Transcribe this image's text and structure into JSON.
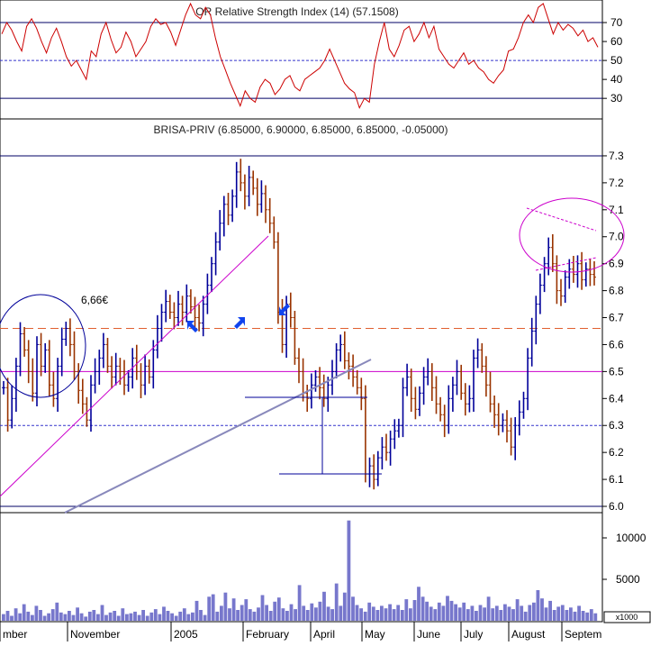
{
  "chart_data": [
    {
      "type": "line",
      "panel": "indicator",
      "title": "OR Relative Strength Index (14) (57.1508)",
      "series": [
        {
          "name": "RSI",
          "color": "#cc0000",
          "values": [
            64,
            70,
            66,
            60,
            55,
            68,
            72,
            67,
            60,
            54,
            62,
            67,
            60,
            52,
            47,
            50,
            45,
            40,
            55,
            52,
            64,
            70,
            61,
            54,
            57,
            65,
            60,
            52,
            56,
            60,
            68,
            72,
            69,
            70,
            65,
            58,
            66,
            74,
            80,
            74,
            72,
            78,
            74,
            62,
            52,
            45,
            38,
            32,
            26,
            34,
            30,
            28,
            36,
            40,
            38,
            32,
            35,
            40,
            42,
            36,
            34,
            40,
            42,
            44,
            46,
            50,
            56,
            50,
            44,
            38,
            35,
            33,
            25,
            30,
            28,
            48,
            60,
            70,
            56,
            52,
            58,
            66,
            68,
            60,
            64,
            70,
            62,
            68,
            56,
            52,
            48,
            46,
            50,
            54,
            48,
            50,
            46,
            44,
            40,
            38,
            42,
            45,
            55,
            56,
            62,
            70,
            74,
            70,
            78,
            80,
            72,
            64,
            70,
            66,
            69,
            67,
            63,
            66,
            60,
            62,
            57
          ]
        }
      ],
      "ylim": [
        22,
        80
      ],
      "yticks": [
        30,
        40,
        50,
        60,
        70
      ],
      "reference_lines": [
        30,
        50,
        70
      ]
    },
    {
      "type": "ohlc",
      "panel": "price",
      "title": "BRISA-PRIV (6.85000, 6.90000, 6.85000, 6.85000, -0.05000)",
      "x_labels": [
        "mber",
        "November",
        "2005",
        "February",
        "April",
        "May",
        "June",
        "July",
        "August",
        "Septem"
      ],
      "ylim": [
        5.98,
        7.36
      ],
      "yticks": [
        6.0,
        6.1,
        6.2,
        6.3,
        6.4,
        6.5,
        6.6,
        6.7,
        6.8,
        6.9,
        7.0,
        7.1,
        7.2,
        7.3
      ],
      "closes": [
        6.44,
        6.32,
        6.4,
        6.52,
        6.64,
        6.58,
        6.5,
        6.42,
        6.6,
        6.52,
        6.58,
        6.45,
        6.4,
        6.52,
        6.62,
        6.66,
        6.6,
        6.5,
        6.43,
        6.38,
        6.32,
        6.45,
        6.5,
        6.55,
        6.6,
        6.52,
        6.48,
        6.52,
        6.5,
        6.45,
        6.48,
        6.55,
        6.5,
        6.45,
        6.52,
        6.48,
        6.58,
        6.66,
        6.72,
        6.76,
        6.72,
        6.7,
        6.75,
        6.72,
        6.78,
        6.74,
        6.7,
        6.68,
        6.75,
        6.82,
        6.9,
        6.98,
        7.05,
        7.12,
        7.08,
        7.15,
        7.24,
        7.2,
        7.15,
        7.22,
        7.18,
        7.12,
        7.16,
        7.1,
        7.05,
        6.98,
        6.72,
        6.6,
        6.75,
        6.7,
        6.55,
        6.5,
        6.42,
        6.4,
        6.45,
        6.48,
        6.44,
        6.4,
        6.45,
        6.5,
        6.58,
        6.6,
        6.54,
        6.52,
        6.48,
        6.44,
        6.4,
        6.12,
        6.15,
        6.1,
        6.18,
        6.22,
        6.2,
        6.25,
        6.28,
        6.3,
        6.44,
        6.48,
        6.4,
        6.36,
        6.42,
        6.48,
        6.5,
        6.44,
        6.38,
        6.34,
        6.3,
        6.4,
        6.45,
        6.5,
        6.42,
        6.38,
        6.4,
        6.55,
        6.58,
        6.52,
        6.45,
        6.38,
        6.34,
        6.3,
        6.32,
        6.28,
        6.22,
        6.3,
        6.35,
        6.4,
        6.55,
        6.65,
        6.75,
        6.82,
        6.9,
        6.96,
        6.9,
        6.8,
        6.78,
        6.85,
        6.88,
        6.86,
        6.9,
        6.84,
        6.88,
        6.86,
        6.85
      ],
      "series": [
        {
          "name": "up",
          "color": "#000099"
        },
        {
          "name": "down",
          "color": "#993300"
        }
      ],
      "reference_lines": [
        {
          "value": 7.3,
          "color": "#000066",
          "style": "solid"
        },
        {
          "value": 6.66,
          "color": "#e06030",
          "style": "dashed"
        },
        {
          "value": 6.5,
          "color": "#cc00cc",
          "style": "solid"
        },
        {
          "value": 6.3,
          "color": "#3333cc",
          "style": "dotted"
        },
        {
          "value": 6.0,
          "color": "#000066",
          "style": "solid"
        }
      ],
      "annotations": [
        {
          "text": "6,66€",
          "color": "#cc0000"
        }
      ]
    },
    {
      "type": "bar",
      "panel": "volume",
      "yticks": [
        5000,
        10000
      ],
      "ylim": [
        0,
        12500
      ],
      "unit_label": "x1000",
      "color": "#7777cc",
      "values": [
        800,
        1200,
        600,
        1500,
        900,
        2000,
        1100,
        700,
        1800,
        1300,
        600,
        900,
        1400,
        2200,
        1000,
        800,
        1200,
        700,
        1600,
        900,
        500,
        1100,
        1300,
        800,
        1900,
        700,
        1000,
        1200,
        600,
        1500,
        800,
        900,
        1100,
        700,
        1300,
        600,
        1000,
        1400,
        800,
        1700,
        1200,
        900,
        600,
        1100,
        1500,
        800,
        1000,
        2400,
        1300,
        700,
        2900,
        3200,
        1100,
        1800,
        3400,
        1500,
        2700,
        1300,
        1900,
        2600,
        1400,
        1100,
        1600,
        3100,
        1900,
        1200,
        2300,
        2800,
        1500,
        1200,
        2000,
        1400,
        4300,
        1800,
        1300,
        2100,
        1600,
        2300,
        3500,
        1700,
        1400,
        4500,
        1800,
        3400,
        12100,
        2900,
        1900,
        1500,
        1100,
        2200,
        1700,
        1300,
        1800,
        1500,
        2000,
        1400,
        1900,
        1300,
        2600,
        1500,
        2500,
        4100,
        2900,
        2300,
        1700,
        1400,
        2200,
        1800,
        3000,
        2400,
        2000,
        1600,
        2200,
        1400,
        1800,
        1200,
        1900,
        1600,
        2900,
        1500,
        1800,
        1300,
        2000,
        1700,
        1400,
        2600,
        1800,
        1100,
        1900,
        2200,
        3700,
        2700,
        1600,
        2400,
        1300,
        1700,
        1900,
        1300,
        1600,
        1100,
        1800,
        1200,
        1000,
        1400,
        900
      ]
    }
  ]
}
